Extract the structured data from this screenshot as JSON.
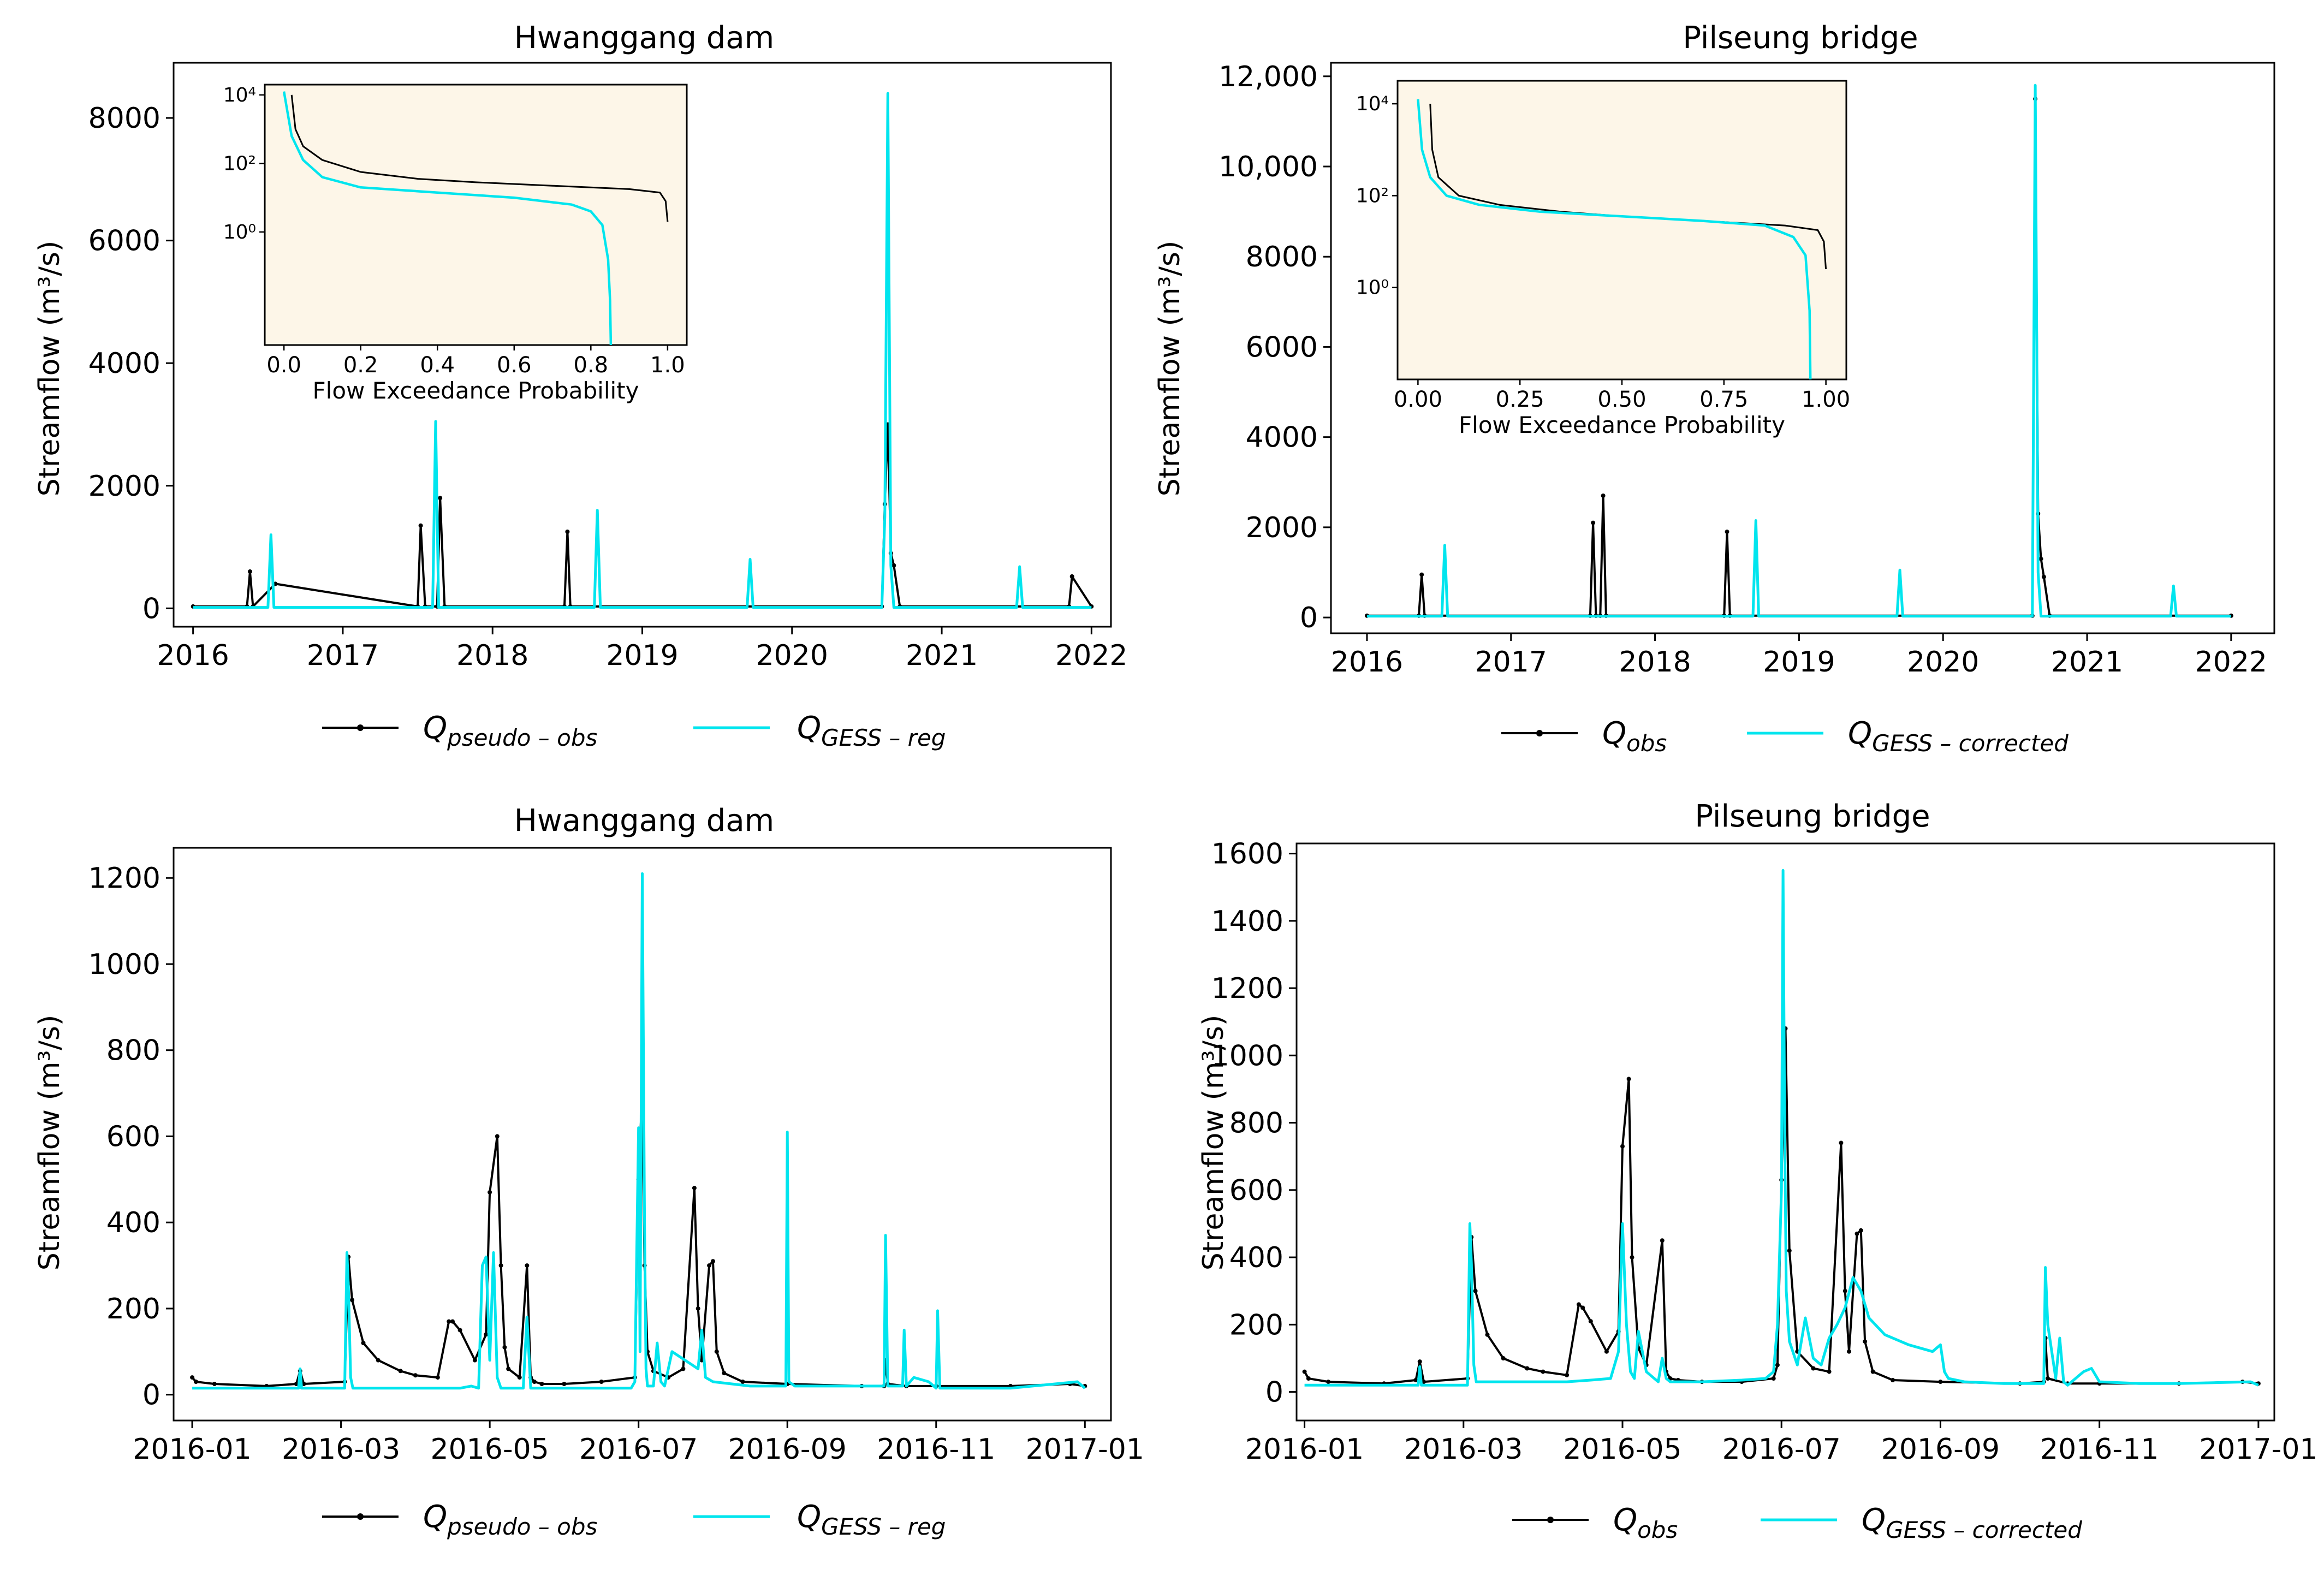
{
  "figure": {
    "description_domain": "streamflow comparison"
  },
  "chart_data": [
    {
      "id": "p1",
      "type": "line",
      "title": "Hwanggang dam",
      "ylabel": "Streamflow",
      "ylabel_unit": "(m³/s)",
      "xlabel": "",
      "x_ticks": [
        "2016",
        "2017",
        "2018",
        "2019",
        "2020",
        "2021",
        "2022"
      ],
      "y_ticks": [
        "0",
        "2000",
        "4000",
        "6000",
        "8000"
      ],
      "ylim": [
        -300,
        8900
      ],
      "xlim": [
        2015.87,
        2022.13
      ],
      "legend": [
        {
          "name": "Q",
          "sub": "pseudo – obs",
          "color": "#000000",
          "markers": true
        },
        {
          "name": "Q",
          "sub": "GESS – reg",
          "color": "#00e5ee",
          "markers": false
        }
      ],
      "series": [
        {
          "name": "Q pseudo-obs",
          "color": "#000000",
          "baseline": 20,
          "x": [
            2016.0,
            2016.36,
            2016.38,
            2016.4,
            2016.55,
            2017.5,
            2017.52,
            2017.55,
            2017.63,
            2017.65,
            2017.68,
            2018.48,
            2018.5,
            2018.52,
            2020.6,
            2020.62,
            2020.64,
            2020.66,
            2020.68,
            2020.72,
            2021.85,
            2021.87,
            2022.0
          ],
          "y": [
            30,
            30,
            600,
            30,
            400,
            30,
            1350,
            30,
            30,
            1800,
            30,
            30,
            1250,
            30,
            30,
            1700,
            3000,
            900,
            700,
            30,
            30,
            520,
            30
          ]
        },
        {
          "name": "Q GESS-reg",
          "color": "#00e5ee",
          "x": [
            2016.0,
            2016.5,
            2016.52,
            2016.54,
            2017.6,
            2017.62,
            2017.64,
            2018.68,
            2018.7,
            2018.72,
            2019.7,
            2019.72,
            2019.74,
            2020.6,
            2020.62,
            2020.64,
            2020.66,
            2020.68,
            2021.5,
            2021.52,
            2021.54,
            2022.0
          ],
          "y": [
            15,
            15,
            1200,
            15,
            15,
            3050,
            15,
            15,
            1600,
            15,
            15,
            800,
            15,
            15,
            1500,
            8400,
            700,
            15,
            15,
            680,
            15,
            15
          ]
        }
      ],
      "inset": {
        "type": "line",
        "xlabel": "Flow Exceedance Probability",
        "x_ticks": [
          "0.0",
          "0.2",
          "0.4",
          "0.6",
          "0.8",
          "1.0"
        ],
        "y_ticks": [
          "10⁴",
          "10²",
          "10⁰"
        ],
        "yscale": "log",
        "xlim": [
          -0.05,
          1.05
        ],
        "ylim_log10": [
          -3.3,
          4.3
        ],
        "series": [
          {
            "color": "#000000",
            "x": [
              0.02,
              0.03,
              0.05,
              0.1,
              0.2,
              0.35,
              0.5,
              0.7,
              0.9,
              0.98,
              0.995,
              1.0
            ],
            "log10y": [
              4.0,
              3.0,
              2.5,
              2.1,
              1.75,
              1.55,
              1.45,
              1.35,
              1.25,
              1.15,
              0.9,
              0.3
            ]
          },
          {
            "color": "#00e5ee",
            "x": [
              0.0,
              0.02,
              0.05,
              0.1,
              0.2,
              0.4,
              0.6,
              0.75,
              0.8,
              0.83,
              0.845,
              0.85,
              0.852
            ],
            "log10y": [
              4.1,
              2.8,
              2.1,
              1.6,
              1.3,
              1.15,
              1.0,
              0.8,
              0.6,
              0.2,
              -0.8,
              -2.0,
              -3.3
            ]
          }
        ]
      }
    },
    {
      "id": "p2",
      "type": "line",
      "title": "Pilseung bridge",
      "ylabel": "Streamflow",
      "ylabel_unit": "(m³/s)",
      "xlabel": "",
      "x_ticks": [
        "2016",
        "2017",
        "2018",
        "2019",
        "2020",
        "2021",
        "2022"
      ],
      "y_ticks": [
        "0",
        "2000",
        "4000",
        "6000",
        "8000",
        "10,000",
        "12,000"
      ],
      "ylim": [
        -350,
        12300
      ],
      "xlim": [
        2015.75,
        2022.3
      ],
      "legend": [
        {
          "name": "Q",
          "sub": "obs",
          "color": "#000000",
          "markers": true
        },
        {
          "name": "Q",
          "sub": "GESS – corrected",
          "color": "#00e5ee",
          "markers": false
        }
      ],
      "series": [
        {
          "name": "Q obs",
          "color": "#000000",
          "x": [
            2016.0,
            2016.36,
            2016.38,
            2016.4,
            2017.55,
            2017.57,
            2017.59,
            2017.62,
            2017.64,
            2017.66,
            2018.48,
            2018.5,
            2018.52,
            2020.62,
            2020.64,
            2020.66,
            2020.68,
            2020.7,
            2020.74,
            2022.0
          ],
          "y": [
            40,
            40,
            950,
            40,
            40,
            2100,
            40,
            40,
            2700,
            40,
            40,
            1900,
            40,
            40,
            11500,
            2300,
            1300,
            900,
            40,
            40
          ]
        },
        {
          "name": "Q GESS-corrected",
          "color": "#00e5ee",
          "x": [
            2016.0,
            2016.52,
            2016.54,
            2016.56,
            2018.68,
            2018.7,
            2018.72,
            2019.68,
            2019.7,
            2019.72,
            2020.62,
            2020.64,
            2020.66,
            2020.68,
            2021.58,
            2021.6,
            2021.62,
            2022.0
          ],
          "y": [
            30,
            30,
            1600,
            30,
            30,
            2150,
            30,
            30,
            1050,
            30,
            30,
            11800,
            1000,
            30,
            30,
            700,
            30,
            30
          ]
        }
      ],
      "inset": {
        "type": "line",
        "xlabel": "Flow Exceedance Probability",
        "x_ticks": [
          "0.00",
          "0.25",
          "0.50",
          "0.75",
          "1.00"
        ],
        "y_ticks": [
          "10⁴",
          "10²",
          "10⁰"
        ],
        "yscale": "log",
        "xlim": [
          -0.05,
          1.05
        ],
        "ylim_log10": [
          -2.0,
          4.5
        ],
        "series": [
          {
            "color": "#000000",
            "x": [
              0.03,
              0.035,
              0.05,
              0.1,
              0.2,
              0.35,
              0.5,
              0.7,
              0.9,
              0.98,
              0.995,
              1.0
            ],
            "log10y": [
              4.0,
              3.0,
              2.4,
              2.0,
              1.8,
              1.65,
              1.55,
              1.45,
              1.35,
              1.25,
              1.0,
              0.4
            ]
          },
          {
            "color": "#00e5ee",
            "x": [
              0.0,
              0.01,
              0.03,
              0.07,
              0.15,
              0.3,
              0.5,
              0.7,
              0.85,
              0.92,
              0.95,
              0.96,
              0.962
            ],
            "log10y": [
              4.1,
              3.0,
              2.4,
              2.0,
              1.8,
              1.65,
              1.55,
              1.45,
              1.35,
              1.1,
              0.7,
              -0.5,
              -2.0
            ]
          }
        ]
      }
    },
    {
      "id": "p3",
      "type": "line",
      "title": "Hwanggang dam",
      "ylabel": "Streamflow",
      "ylabel_unit": "(m³/s)",
      "xlabel": "",
      "x_ticks": [
        "2016-01",
        "2016-03",
        "2016-05",
        "2016-07",
        "2016-09",
        "2016-11",
        "2017-01"
      ],
      "y_ticks": [
        "0",
        "200",
        "400",
        "600",
        "800",
        "1000",
        "1200"
      ],
      "ylim": [
        -60,
        1270
      ],
      "xlim": [
        -0.25,
        12.35
      ],
      "legend": [
        {
          "name": "Q",
          "sub": "pseudo – obs",
          "color": "#000000",
          "markers": true
        },
        {
          "name": "Q",
          "sub": "GESS – reg",
          "color": "#00e5ee",
          "markers": false
        }
      ],
      "series": [
        {
          "name": "Q pseudo-obs",
          "color": "#000000",
          "x": [
            0.0,
            0.05,
            0.3,
            1.0,
            1.4,
            1.45,
            1.5,
            2.05,
            2.1,
            2.15,
            2.3,
            2.5,
            2.8,
            3.0,
            3.3,
            3.45,
            3.5,
            3.6,
            3.8,
            3.95,
            4.0,
            4.1,
            4.15,
            4.2,
            4.25,
            4.4,
            4.5,
            4.55,
            4.6,
            4.7,
            5.0,
            5.5,
            5.95,
            6.0,
            6.05,
            6.08,
            6.12,
            6.2,
            6.4,
            6.6,
            6.75,
            6.8,
            6.85,
            6.95,
            7.0,
            7.05,
            7.15,
            7.4,
            8.0,
            9.0,
            9.3,
            9.32,
            9.35,
            9.6,
            10.0,
            11.0,
            11.8,
            12.0
          ],
          "y": [
            40,
            30,
            25,
            20,
            25,
            55,
            25,
            30,
            320,
            220,
            120,
            80,
            55,
            45,
            40,
            170,
            170,
            150,
            80,
            140,
            470,
            600,
            300,
            110,
            60,
            40,
            300,
            40,
            30,
            25,
            25,
            30,
            40,
            500,
            710,
            300,
            100,
            55,
            40,
            60,
            480,
            200,
            80,
            300,
            310,
            100,
            50,
            30,
            25,
            20,
            20,
            80,
            25,
            20,
            20,
            20,
            25,
            20
          ]
        },
        {
          "name": "Q GESS-reg",
          "color": "#00e5ee",
          "x": [
            0.0,
            1.0,
            1.43,
            1.45,
            1.47,
            2.05,
            2.08,
            2.1,
            2.13,
            2.16,
            2.3,
            2.4,
            3.0,
            3.3,
            3.45,
            3.6,
            3.75,
            3.85,
            3.9,
            3.95,
            4.0,
            4.05,
            4.1,
            4.15,
            4.2,
            4.45,
            4.5,
            4.55,
            4.6,
            5.0,
            5.5,
            5.9,
            5.95,
            6.0,
            6.02,
            6.05,
            6.08,
            6.1,
            6.12,
            6.2,
            6.25,
            6.3,
            6.35,
            6.45,
            6.8,
            6.85,
            6.9,
            7.0,
            7.5,
            7.98,
            8.0,
            8.02,
            8.1,
            9.0,
            9.3,
            9.32,
            9.35,
            9.55,
            9.57,
            9.6,
            9.7,
            9.9,
            10.0,
            10.02,
            10.05,
            10.5,
            11.0,
            11.9,
            12.0
          ],
          "y": [
            15,
            15,
            15,
            60,
            15,
            15,
            330,
            250,
            40,
            15,
            15,
            15,
            15,
            15,
            15,
            15,
            20,
            15,
            300,
            320,
            80,
            330,
            40,
            15,
            15,
            15,
            180,
            15,
            15,
            15,
            15,
            15,
            30,
            620,
            100,
            1210,
            400,
            60,
            20,
            20,
            120,
            30,
            20,
            100,
            60,
            150,
            40,
            30,
            20,
            20,
            610,
            30,
            20,
            20,
            20,
            370,
            20,
            20,
            150,
            20,
            40,
            30,
            15,
            195,
            15,
            15,
            15,
            30,
            15
          ]
        }
      ]
    },
    {
      "id": "p4",
      "type": "line",
      "title": "Pilseung bridge",
      "ylabel": "Streamflow",
      "ylabel_unit": "(m³/s)",
      "xlabel": "",
      "x_ticks": [
        "2016-01",
        "2016-03",
        "2016-05",
        "2016-07",
        "2016-09",
        "2016-11",
        "2017-01"
      ],
      "y_ticks": [
        "0",
        "200",
        "400",
        "600",
        "800",
        "1000",
        "1200",
        "1400",
        "1600"
      ],
      "ylim": [
        -85,
        1630
      ],
      "xlim": [
        -0.1,
        12.2
      ],
      "legend": [
        {
          "name": "Q",
          "sub": "obs",
          "color": "#000000",
          "markers": true
        },
        {
          "name": "Q",
          "sub": "GESS – corrected",
          "color": "#00e5ee",
          "markers": false
        }
      ],
      "series": [
        {
          "name": "Q obs",
          "color": "#000000",
          "x": [
            0.0,
            0.05,
            0.3,
            1.0,
            1.4,
            1.45,
            1.5,
            2.05,
            2.1,
            2.15,
            2.3,
            2.5,
            2.8,
            3.0,
            3.3,
            3.45,
            3.5,
            3.6,
            3.8,
            3.95,
            4.0,
            4.08,
            4.12,
            4.2,
            4.3,
            4.5,
            4.55,
            4.6,
            4.7,
            5.0,
            5.5,
            5.9,
            5.95,
            6.0,
            6.05,
            6.1,
            6.2,
            6.4,
            6.6,
            6.75,
            6.8,
            6.85,
            6.95,
            7.0,
            7.05,
            7.15,
            7.4,
            8.0,
            9.0,
            9.3,
            9.32,
            9.35,
            9.6,
            10.0,
            11.0,
            11.8,
            12.0
          ],
          "y": [
            60,
            40,
            30,
            25,
            35,
            90,
            30,
            40,
            460,
            300,
            170,
            100,
            70,
            60,
            50,
            260,
            250,
            210,
            120,
            180,
            730,
            930,
            400,
            130,
            80,
            450,
            60,
            40,
            35,
            30,
            30,
            40,
            80,
            630,
            1080,
            420,
            120,
            70,
            60,
            740,
            300,
            120,
            470,
            480,
            150,
            60,
            35,
            30,
            25,
            30,
            160,
            40,
            25,
            25,
            25,
            30,
            25
          ]
        },
        {
          "name": "Q GESS-corrected",
          "color": "#00e5ee",
          "x": [
            0.0,
            1.0,
            1.43,
            1.45,
            1.47,
            2.05,
            2.08,
            2.1,
            2.13,
            2.16,
            2.3,
            2.5,
            3.0,
            3.3,
            3.6,
            3.85,
            3.95,
            4.0,
            4.05,
            4.1,
            4.15,
            4.2,
            4.3,
            4.45,
            4.5,
            4.55,
            4.6,
            4.8,
            5.0,
            5.5,
            5.8,
            5.9,
            5.95,
            6.0,
            6.02,
            6.04,
            6.06,
            6.1,
            6.2,
            6.3,
            6.4,
            6.5,
            6.6,
            6.7,
            6.8,
            6.9,
            7.0,
            7.1,
            7.3,
            7.6,
            7.9,
            8.0,
            8.05,
            8.1,
            8.3,
            8.8,
            9.0,
            9.3,
            9.32,
            9.35,
            9.45,
            9.5,
            9.55,
            9.6,
            9.8,
            9.9,
            10.0,
            10.5,
            11.0,
            11.9,
            12.0
          ],
          "y": [
            20,
            20,
            20,
            75,
            20,
            20,
            500,
            380,
            80,
            30,
            30,
            30,
            30,
            30,
            35,
            40,
            120,
            500,
            200,
            60,
            40,
            180,
            60,
            30,
            100,
            40,
            30,
            30,
            30,
            35,
            40,
            60,
            200,
            600,
            1550,
            800,
            300,
            150,
            80,
            220,
            100,
            80,
            160,
            200,
            250,
            340,
            300,
            220,
            170,
            140,
            120,
            140,
            60,
            40,
            30,
            25,
            25,
            25,
            370,
            200,
            40,
            160,
            30,
            20,
            60,
            70,
            30,
            25,
            25,
            30,
            20
          ]
        }
      ]
    }
  ]
}
